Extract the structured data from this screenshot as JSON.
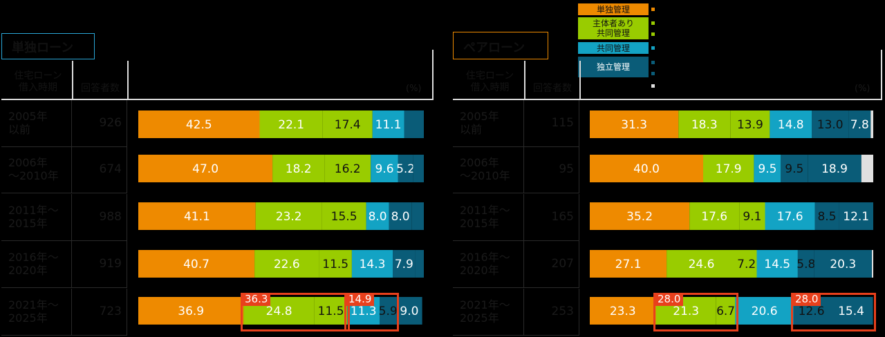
{
  "legend": {
    "items": [
      {
        "label": "単独管理",
        "color": "#ee8a00"
      },
      {
        "label": "主体者あり\n共同管理",
        "color": "#99cc00"
      },
      {
        "label": "共同管理",
        "color": "#13a3c4"
      },
      {
        "label": "独立管理",
        "color": "#0a5c78"
      }
    ],
    "extra_dot_color": "#e0e0e0"
  },
  "panels": [
    {
      "title": "単独ローン",
      "title_color": "#2aa8d8",
      "header": {
        "period": "住宅ローン\n借入時期",
        "count": "回答者数",
        "unit": "(%)"
      },
      "rows": [
        {
          "period": "2005年\n以前",
          "count": "926"
        },
        {
          "period": "2006年\n～2010年",
          "count": "674"
        },
        {
          "period": "2011年～\n2015年",
          "count": "988"
        },
        {
          "period": "2016年～\n2020年",
          "count": "919"
        },
        {
          "period": "2021年～\n2025年",
          "count": "723"
        }
      ],
      "highlights": [
        {
          "label": "36.3",
          "from": 1,
          "to": 2
        },
        {
          "label": "14.9",
          "from": 3,
          "to": 4
        }
      ]
    },
    {
      "title": "ペアローン",
      "title_color": "#ee8a00",
      "header": {
        "period": "住宅ローン\n借入時期",
        "count": "回答者数",
        "unit": "(%)"
      },
      "rows": [
        {
          "period": "2005年\n以前",
          "count": "115"
        },
        {
          "period": "2006年\n～2010年",
          "count": "95"
        },
        {
          "period": "2011年～\n2015年",
          "count": "165"
        },
        {
          "period": "2016年～\n2020年",
          "count": "207"
        },
        {
          "period": "2021年～\n2025年",
          "count": "253"
        }
      ],
      "highlights": [
        {
          "label": "28.0",
          "from": 1,
          "to": 2
        },
        {
          "label": "28.0",
          "from": 4,
          "to": 5
        }
      ]
    }
  ],
  "chart_data": [
    {
      "type": "bar",
      "stacked": true,
      "orientation": "horizontal",
      "title": "単独ローン",
      "categories": [
        "2005年以前",
        "2006年～2010年",
        "2011年～2015年",
        "2016年～2020年",
        "2021年～2025年"
      ],
      "series": [
        {
          "name": "単独管理",
          "color": "#ee8a00",
          "values": [
            42.5,
            47.0,
            41.1,
            40.7,
            36.9
          ]
        },
        {
          "name": "主体者あり共同管理",
          "color": "#99cc00",
          "values": [
            22.1,
            18.2,
            23.2,
            22.6,
            24.8
          ]
        },
        {
          "name": "",
          "color": "#99cc00",
          "values": [
            17.4,
            16.2,
            15.5,
            11.5,
            11.5
          ]
        },
        {
          "name": "共同管理",
          "color": "#13a3c4",
          "values": [
            11.1,
            9.6,
            8.0,
            14.3,
            11.3
          ]
        },
        {
          "name": "独立管理",
          "color": "#0a5c78",
          "values": [
            6.9,
            5.2,
            8.0,
            7.9,
            5.9
          ]
        },
        {
          "name": "",
          "color": "#0a5c78",
          "values": [
            0,
            3.8,
            4.2,
            3.0,
            9.0
          ]
        }
      ],
      "labels": [
        [
          "42.5",
          "22.1",
          "17.4",
          "11.1",
          "",
          ""
        ],
        [
          "47.0",
          "18.2",
          "16.2",
          "9.6",
          "5.2",
          ""
        ],
        [
          "41.1",
          "23.2",
          "15.5",
          "8.0",
          "8.0",
          ""
        ],
        [
          "40.7",
          "22.6",
          "11.5",
          "14.3",
          "7.9",
          ""
        ],
        [
          "36.9",
          "24.8",
          "11.5",
          "11.3",
          "5.9",
          "9.0"
        ]
      ],
      "xlim": [
        0,
        100
      ]
    },
    {
      "type": "bar",
      "stacked": true,
      "orientation": "horizontal",
      "title": "ペアローン",
      "categories": [
        "2005年以前",
        "2006年～2010年",
        "2011年～2015年",
        "2016年～2020年",
        "2021年～2025年"
      ],
      "series": [
        {
          "name": "単独管理",
          "color": "#ee8a00",
          "values": [
            31.3,
            40.0,
            35.2,
            27.1,
            23.3
          ]
        },
        {
          "name": "主体者あり共同管理",
          "color": "#99cc00",
          "values": [
            18.3,
            17.9,
            17.6,
            24.6,
            21.3
          ]
        },
        {
          "name": "",
          "color": "#99cc00",
          "values": [
            13.9,
            0,
            9.1,
            7.2,
            6.7
          ]
        },
        {
          "name": "共同管理",
          "color": "#13a3c4",
          "values": [
            14.8,
            9.5,
            17.6,
            14.5,
            20.6
          ]
        },
        {
          "name": "独立管理",
          "color": "#0a5c78",
          "values": [
            13.0,
            9.5,
            8.5,
            5.8,
            12.6
          ]
        },
        {
          "name": "",
          "color": "#0a5c78",
          "values": [
            7.8,
            18.9,
            12.1,
            20.3,
            15.4
          ]
        },
        {
          "name": "",
          "color": "#e0e0e0",
          "values": [
            0.9,
            4.2,
            0,
            0.5,
            0
          ]
        }
      ],
      "labels": [
        [
          "31.3",
          "18.3",
          "13.9",
          "14.8",
          "13.0",
          "7.8",
          ""
        ],
        [
          "40.0",
          "17.9",
          "",
          "9.5",
          "9.5",
          "18.9",
          ""
        ],
        [
          "35.2",
          "17.6",
          "9.1",
          "17.6",
          "8.5",
          "12.1",
          ""
        ],
        [
          "27.1",
          "24.6",
          "7.2",
          "14.5",
          "5.8",
          "20.3",
          ""
        ],
        [
          "23.3",
          "21.3",
          "6.7",
          "20.6",
          "12.6",
          "15.4",
          ""
        ]
      ],
      "xlim": [
        0,
        100
      ]
    }
  ]
}
